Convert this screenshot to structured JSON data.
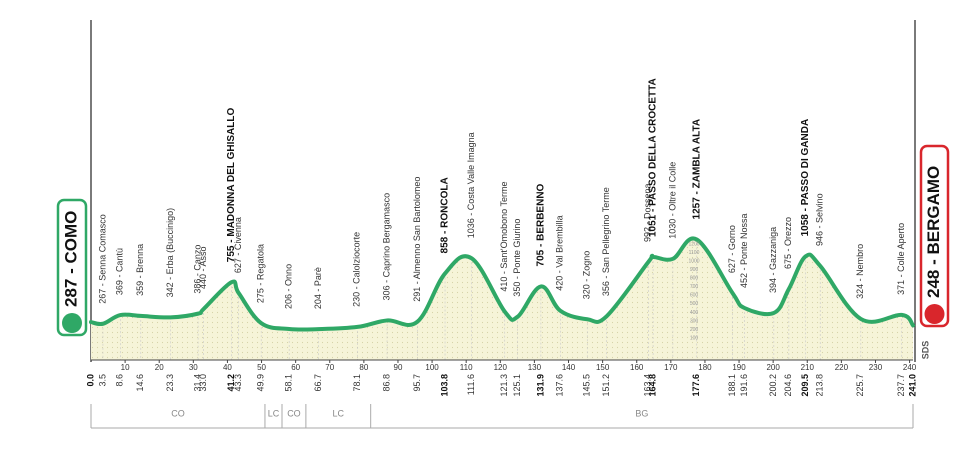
{
  "chart_data": {
    "type": "line",
    "x": [
      0.0,
      3.5,
      8.6,
      14.6,
      23.3,
      31.4,
      33.0,
      41.2,
      43.3,
      49.9,
      58.1,
      66.7,
      78.1,
      86.8,
      95.7,
      103.8,
      111.6,
      121.3,
      125.1,
      131.9,
      137.6,
      145.5,
      151.2,
      163.4,
      164.8,
      170.6,
      177.6,
      188.1,
      191.6,
      200.2,
      204.6,
      209.5,
      213.8,
      225.7,
      237.7,
      241.0
    ],
    "x_labels": [
      "0.0",
      "3.5",
      "8.6",
      "14.6",
      "23.3",
      "31.4",
      "33.0",
      "41.2",
      "43.3",
      "49.9",
      "58.1",
      "66.7",
      "78.1",
      "86.8",
      "95.7",
      "103.8",
      "111.6",
      "121.3",
      "125.1",
      "131.9",
      "137.6",
      "145.5",
      "151.2",
      "163.4",
      "164.8",
      null,
      "177.6",
      "188.1",
      "191.6",
      "200.2",
      "204.6",
      "209.5",
      "213.8",
      "225.7",
      "237.7",
      "241.0"
    ],
    "values": [
      287,
      267,
      369,
      359,
      342,
      386,
      440,
      755,
      627,
      275,
      206,
      204,
      230,
      306,
      291,
      858,
      1036,
      410,
      350,
      705,
      420,
      320,
      356,
      992,
      1051,
      1030,
      1257,
      627,
      452,
      394,
      675,
      1058,
      946,
      324,
      371,
      248
    ],
    "value_labels": [
      "287 - COMO",
      "267 - Senna Comasco",
      "369 - Cantù",
      "359 - Brenna",
      "342 - Erba (Buccinigo)",
      "386 - Canzo",
      "440 - Asso",
      "755 - MADONNA DEL GHISALLO",
      "627 - Civenna",
      "275 - Regatola",
      "206 - Onno",
      "204 - Parè",
      "230 - Calolziocorte",
      "306 - Caprino Bergamasco",
      "291 - Almenno San Bartolomeo",
      "858 - RONCOLA",
      "1036 - Costa Valle Imagna",
      "410 - Sant'Omobono Terme",
      "350 - Ponte Giurino",
      "705 - BERBENNO",
      "420 - Val Brembilla",
      "320 - Zogno",
      "356 - San Pellegrino Terme",
      "992 - Dossena",
      "1051 - PASSO DELLA CROCETTA",
      "1030 - Oltre il Colle",
      "1257 - ZAMBLA ALTA",
      "627 - Gorno",
      "452 - Ponte Nossa",
      "394 - Gazzaniga",
      "675 - Orezzo",
      "1058 - PASSO DI GANDA",
      "946 - Selvino",
      "324 - Nembro",
      "371 - Colle Aperto",
      "248 - BERGAMO"
    ],
    "bold_points": [
      0,
      7,
      15,
      19,
      24,
      26,
      31,
      35
    ],
    "color": "#2fa866",
    "fill": "#f6f4d8",
    "start_color": "#2fa866",
    "finish_color": "#d9262c",
    "xlim": [
      0,
      241
    ],
    "xticks": [
      10,
      20,
      30,
      40,
      50,
      60,
      70,
      80,
      90,
      100,
      110,
      120,
      130,
      140,
      150,
      160,
      170,
      180,
      190,
      200,
      210,
      220,
      230,
      240
    ],
    "ylim": [
      -100,
      3600
    ],
    "yticks": [
      100,
      200,
      300,
      400,
      500,
      600,
      700,
      800,
      900,
      1000,
      1100,
      1200
    ],
    "regions": [
      {
        "name": "CO",
        "from": 0,
        "to": 51
      },
      {
        "name": "LC",
        "from": 51,
        "to": 56
      },
      {
        "name": "CO",
        "from": 56,
        "to": 63
      },
      {
        "name": "LC",
        "from": 63,
        "to": 82
      },
      {
        "name": "BG",
        "from": 82,
        "to": 241
      }
    ],
    "sponsor": "SDS"
  }
}
